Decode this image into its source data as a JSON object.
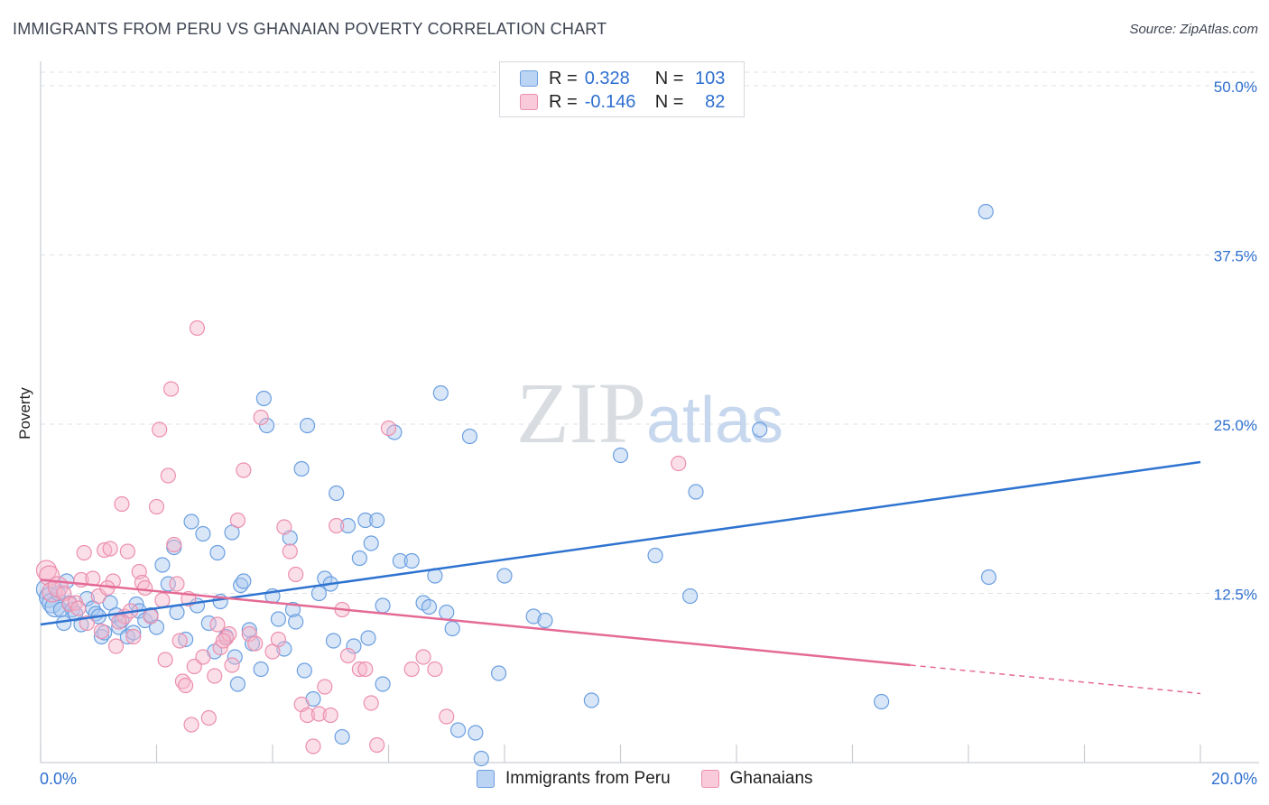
{
  "header": {
    "title": "IMMIGRANTS FROM PERU VS GHANAIAN POVERTY CORRELATION CHART",
    "source": "Source: ZipAtlas.com"
  },
  "watermark": {
    "zip": "ZIP",
    "atlas": "atlas"
  },
  "legend": {
    "rows": [
      {
        "r_label": "R =",
        "r_value": "0.328",
        "n_label": "N =",
        "n_value": "103"
      },
      {
        "r_label": "R =",
        "r_value": "-0.146",
        "n_label": "N =",
        "n_value": "82"
      }
    ]
  },
  "bottom_legend": {
    "series_a": "Immigrants from Peru",
    "series_b": "Ghanaians"
  },
  "colors": {
    "peru_fill": "#a9c8f0",
    "peru_stroke": "#6b9fe0",
    "peru_line": "#2f73d0",
    "ghana_fill": "#f6b8cc",
    "ghana_stroke": "#ec8fae",
    "ghana_line": "#e46a96",
    "grid": "#dde1e6",
    "tick_label": "#2e6fcf"
  },
  "chart_data": {
    "type": "scatter",
    "title": "IMMIGRANTS FROM PERU VS GHANAIAN POVERTY CORRELATION CHART",
    "xlabel": "",
    "ylabel": "Poverty",
    "xlim": [
      0,
      20
    ],
    "ylim": [
      0,
      51
    ],
    "x_tick_labels": [
      "0.0%",
      "20.0%"
    ],
    "y_ticks": [
      12.5,
      25.0,
      37.5,
      50.0
    ],
    "y_tick_labels": [
      "12.5%",
      "25.0%",
      "37.5%",
      "50.0%"
    ],
    "series": [
      {
        "name": "Immigrants from Peru",
        "r": 0.328,
        "n": 103,
        "trend": {
          "x": [
            0,
            20
          ],
          "y": [
            10.2,
            22.2
          ]
        },
        "points": [
          [
            0.1,
            12.8
          ],
          [
            0.15,
            12.2
          ],
          [
            0.2,
            11.8
          ],
          [
            0.25,
            11.5
          ],
          [
            0.3,
            12.5
          ],
          [
            0.35,
            11.3
          ],
          [
            0.4,
            10.3
          ],
          [
            0.5,
            11.8
          ],
          [
            0.55,
            11.3
          ],
          [
            0.6,
            11.0
          ],
          [
            0.7,
            10.2
          ],
          [
            0.8,
            12.1
          ],
          [
            0.9,
            11.4
          ],
          [
            0.95,
            11.0
          ],
          [
            1.0,
            10.8
          ],
          [
            1.05,
            9.3
          ],
          [
            1.1,
            9.6
          ],
          [
            1.2,
            11.8
          ],
          [
            1.3,
            10.9
          ],
          [
            1.35,
            10.0
          ],
          [
            1.4,
            10.5
          ],
          [
            1.5,
            9.3
          ],
          [
            1.6,
            9.6
          ],
          [
            1.65,
            11.7
          ],
          [
            1.7,
            11.2
          ],
          [
            1.8,
            10.5
          ],
          [
            1.9,
            10.9
          ],
          [
            2.0,
            10.0
          ],
          [
            2.1,
            14.6
          ],
          [
            2.2,
            13.2
          ],
          [
            2.3,
            15.9
          ],
          [
            2.35,
            11.1
          ],
          [
            2.5,
            9.1
          ],
          [
            2.6,
            17.8
          ],
          [
            2.7,
            11.6
          ],
          [
            2.8,
            16.9
          ],
          [
            2.9,
            10.3
          ],
          [
            3.0,
            8.2
          ],
          [
            3.05,
            15.5
          ],
          [
            3.1,
            11.9
          ],
          [
            3.2,
            9.3
          ],
          [
            3.3,
            17.0
          ],
          [
            3.35,
            7.8
          ],
          [
            3.4,
            5.8
          ],
          [
            3.45,
            13.1
          ],
          [
            3.5,
            13.4
          ],
          [
            3.6,
            9.8
          ],
          [
            3.65,
            8.8
          ],
          [
            3.8,
            6.9
          ],
          [
            3.85,
            26.9
          ],
          [
            3.9,
            24.9
          ],
          [
            4.0,
            12.3
          ],
          [
            4.1,
            10.6
          ],
          [
            4.2,
            8.4
          ],
          [
            4.3,
            16.6
          ],
          [
            4.35,
            11.3
          ],
          [
            4.4,
            10.4
          ],
          [
            4.5,
            21.7
          ],
          [
            4.55,
            6.8
          ],
          [
            4.6,
            24.9
          ],
          [
            4.7,
            4.7
          ],
          [
            4.8,
            12.5
          ],
          [
            4.9,
            13.6
          ],
          [
            5.0,
            13.2
          ],
          [
            5.05,
            9.0
          ],
          [
            5.1,
            19.9
          ],
          [
            5.2,
            1.9
          ],
          [
            5.3,
            17.5
          ],
          [
            5.4,
            8.6
          ],
          [
            5.5,
            15.1
          ],
          [
            5.6,
            17.9
          ],
          [
            5.65,
            9.2
          ],
          [
            5.7,
            16.2
          ],
          [
            5.8,
            17.9
          ],
          [
            5.9,
            5.8
          ],
          [
            6.1,
            24.4
          ],
          [
            6.2,
            14.9
          ],
          [
            6.4,
            14.9
          ],
          [
            6.6,
            11.8
          ],
          [
            6.7,
            11.5
          ],
          [
            6.8,
            13.8
          ],
          [
            6.9,
            27.3
          ],
          [
            7.0,
            11.1
          ],
          [
            7.2,
            2.4
          ],
          [
            7.4,
            24.1
          ],
          [
            7.5,
            2.2
          ],
          [
            7.6,
            0.3
          ],
          [
            7.9,
            6.6
          ],
          [
            8.0,
            13.8
          ],
          [
            8.5,
            10.8
          ],
          [
            8.7,
            10.5
          ],
          [
            9.5,
            4.6
          ],
          [
            10.0,
            22.7
          ],
          [
            10.6,
            15.3
          ],
          [
            11.2,
            12.3
          ],
          [
            11.3,
            20.0
          ],
          [
            12.4,
            24.6
          ],
          [
            16.3,
            40.7
          ],
          [
            16.35,
            13.7
          ],
          [
            14.5,
            4.5
          ],
          [
            7.1,
            9.9
          ],
          [
            5.9,
            11.6
          ],
          [
            0.45,
            13.4
          ]
        ]
      },
      {
        "name": "Ghanaians",
        "r": -0.146,
        "n": 82,
        "trend": {
          "x": [
            0,
            15
          ],
          "y": [
            13.5,
            7.2
          ]
        },
        "trend_dashed": {
          "x": [
            15,
            20
          ],
          "y": [
            7.2,
            5.1
          ]
        },
        "points": [
          [
            0.1,
            14.2
          ],
          [
            0.15,
            13.8
          ],
          [
            0.2,
            12.6
          ],
          [
            0.3,
            13.0
          ],
          [
            0.4,
            12.5
          ],
          [
            0.5,
            11.7
          ],
          [
            0.6,
            11.8
          ],
          [
            0.7,
            13.5
          ],
          [
            0.75,
            15.5
          ],
          [
            0.8,
            10.3
          ],
          [
            0.9,
            13.6
          ],
          [
            1.0,
            12.3
          ],
          [
            1.05,
            9.7
          ],
          [
            1.1,
            15.7
          ],
          [
            1.2,
            15.8
          ],
          [
            1.25,
            13.4
          ],
          [
            1.3,
            8.6
          ],
          [
            1.4,
            19.1
          ],
          [
            1.45,
            10.8
          ],
          [
            1.5,
            15.6
          ],
          [
            1.55,
            11.2
          ],
          [
            1.6,
            9.3
          ],
          [
            1.7,
            14.1
          ],
          [
            1.75,
            13.3
          ],
          [
            1.8,
            12.9
          ],
          [
            1.9,
            10.8
          ],
          [
            2.0,
            18.9
          ],
          [
            2.05,
            24.6
          ],
          [
            2.1,
            12.0
          ],
          [
            2.15,
            7.6
          ],
          [
            2.2,
            21.2
          ],
          [
            2.25,
            27.6
          ],
          [
            2.3,
            16.1
          ],
          [
            2.35,
            13.2
          ],
          [
            2.4,
            9.0
          ],
          [
            2.45,
            6.0
          ],
          [
            2.5,
            5.7
          ],
          [
            2.6,
            2.8
          ],
          [
            2.65,
            7.1
          ],
          [
            2.7,
            32.1
          ],
          [
            2.8,
            7.8
          ],
          [
            2.9,
            3.3
          ],
          [
            3.0,
            6.4
          ],
          [
            3.05,
            10.2
          ],
          [
            3.1,
            8.5
          ],
          [
            3.2,
            9.2
          ],
          [
            3.25,
            9.5
          ],
          [
            3.3,
            7.2
          ],
          [
            3.4,
            17.9
          ],
          [
            3.5,
            21.6
          ],
          [
            3.6,
            9.5
          ],
          [
            3.7,
            8.8
          ],
          [
            3.8,
            25.5
          ],
          [
            4.0,
            8.2
          ],
          [
            4.1,
            9.1
          ],
          [
            4.2,
            17.4
          ],
          [
            4.3,
            15.6
          ],
          [
            4.4,
            13.9
          ],
          [
            4.5,
            4.3
          ],
          [
            4.6,
            3.5
          ],
          [
            4.7,
            1.2
          ],
          [
            4.8,
            3.6
          ],
          [
            4.9,
            5.6
          ],
          [
            5.0,
            3.5
          ],
          [
            5.1,
            17.5
          ],
          [
            5.2,
            11.3
          ],
          [
            5.3,
            7.9
          ],
          [
            5.5,
            6.9
          ],
          [
            5.6,
            6.9
          ],
          [
            5.7,
            4.4
          ],
          [
            5.8,
            1.3
          ],
          [
            6.0,
            24.7
          ],
          [
            6.4,
            6.9
          ],
          [
            6.6,
            7.8
          ],
          [
            6.8,
            6.9
          ],
          [
            7.0,
            3.4
          ],
          [
            11.0,
            22.1
          ],
          [
            1.15,
            12.9
          ],
          [
            1.35,
            10.4
          ],
          [
            0.65,
            11.4
          ],
          [
            2.55,
            12.1
          ],
          [
            3.15,
            9.0
          ]
        ]
      }
    ]
  }
}
